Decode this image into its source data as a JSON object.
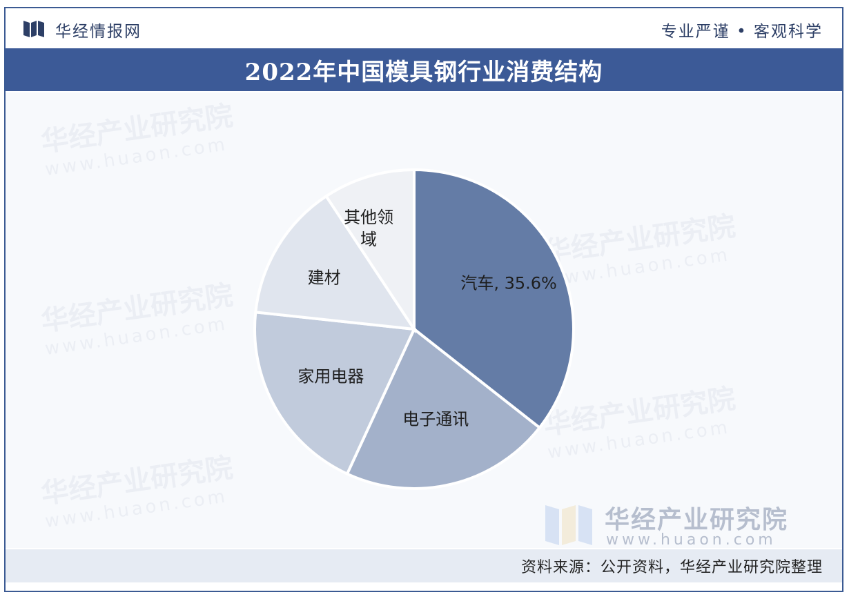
{
  "header": {
    "brand": "华经情报网",
    "slogan": "专业严谨 • 客观科学"
  },
  "chart_data": {
    "type": "pie",
    "title": "2022年中国模具钢行业消费结构",
    "slices": [
      {
        "name": "汽车",
        "value": 35.6,
        "label": "汽车, 35.6%",
        "color": "#647ca6"
      },
      {
        "name": "电子通讯",
        "value": 21.3,
        "label": "电子通讯",
        "color": "#a3b1ca"
      },
      {
        "name": "家用电器",
        "value": 19.8,
        "label": "家用电器",
        "color": "#c1cbdc"
      },
      {
        "name": "建材",
        "value": 14.0,
        "label": "建材",
        "color": "#e0e5ee"
      },
      {
        "name": "其他领域",
        "value": 9.3,
        "label_lines": [
          "其他领",
          "域"
        ],
        "color": "#eff1f5"
      }
    ]
  },
  "watermark": {
    "name": "华经产业研究院",
    "url": "www.huaon.com"
  },
  "footer": {
    "source": "资料来源：公开资料，华经产业研究院整理"
  }
}
